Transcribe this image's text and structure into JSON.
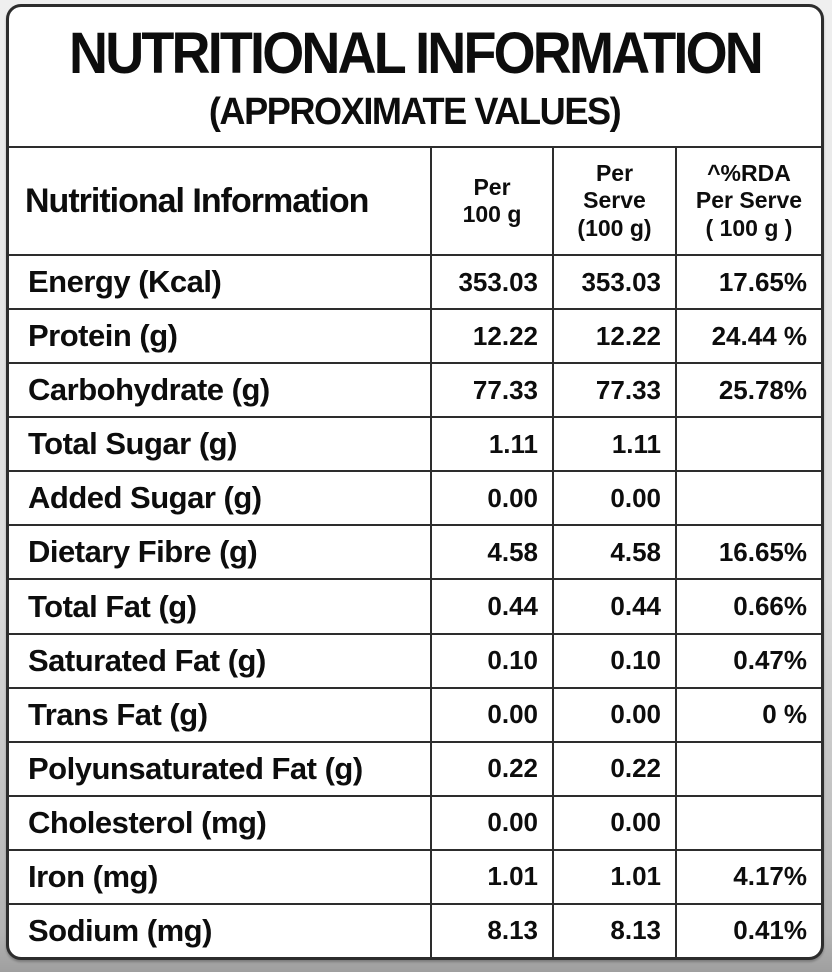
{
  "header": {
    "title": "NUTRITIONAL INFORMATION",
    "subtitle": "(APPROXIMATE VALUES)"
  },
  "table": {
    "columns": {
      "label": "Nutritional Information",
      "per100": "Per\n100 g",
      "serve": "Per\nServe\n(100 g)",
      "rda": "^%RDA\nPer Serve\n( 100 g )"
    },
    "rows": [
      {
        "label": "Energy (Kcal)",
        "per100": "353.03",
        "serve": "353.03",
        "rda": "17.65%"
      },
      {
        "label": "Protein (g)",
        "per100": "12.22",
        "serve": "12.22",
        "rda": "24.44 %"
      },
      {
        "label": "Carbohydrate (g)",
        "per100": "77.33",
        "serve": "77.33",
        "rda": "25.78%"
      },
      {
        "label": "Total Sugar (g)",
        "per100": "1.11",
        "serve": "1.11",
        "rda": ""
      },
      {
        "label": "Added Sugar (g)",
        "per100": "0.00",
        "serve": "0.00",
        "rda": ""
      },
      {
        "label": "Dietary Fibre (g)",
        "per100": "4.58",
        "serve": "4.58",
        "rda": "16.65%"
      },
      {
        "label": "Total Fat (g)",
        "per100": "0.44",
        "serve": "0.44",
        "rda": "0.66%"
      },
      {
        "label": "Saturated Fat (g)",
        "per100": "0.10",
        "serve": "0.10",
        "rda": "0.47%"
      },
      {
        "label": "Trans Fat (g)",
        "per100": "0.00",
        "serve": "0.00",
        "rda": "0 %"
      },
      {
        "label": "Polyunsaturated Fat (g)",
        "per100": "0.22",
        "serve": "0.22",
        "rda": ""
      },
      {
        "label": "Cholesterol (mg)",
        "per100": "0.00",
        "serve": "0.00",
        "rda": ""
      },
      {
        "label": "Iron (mg)",
        "per100": "1.01",
        "serve": "1.01",
        "rda": "4.17%"
      },
      {
        "label": "Sodium (mg)",
        "per100": "8.13",
        "serve": "8.13",
        "rda": "0.41%"
      }
    ]
  },
  "colors": {
    "background": "#ffffff",
    "border": "#2d2d2d",
    "text": "#0d0d0d"
  }
}
